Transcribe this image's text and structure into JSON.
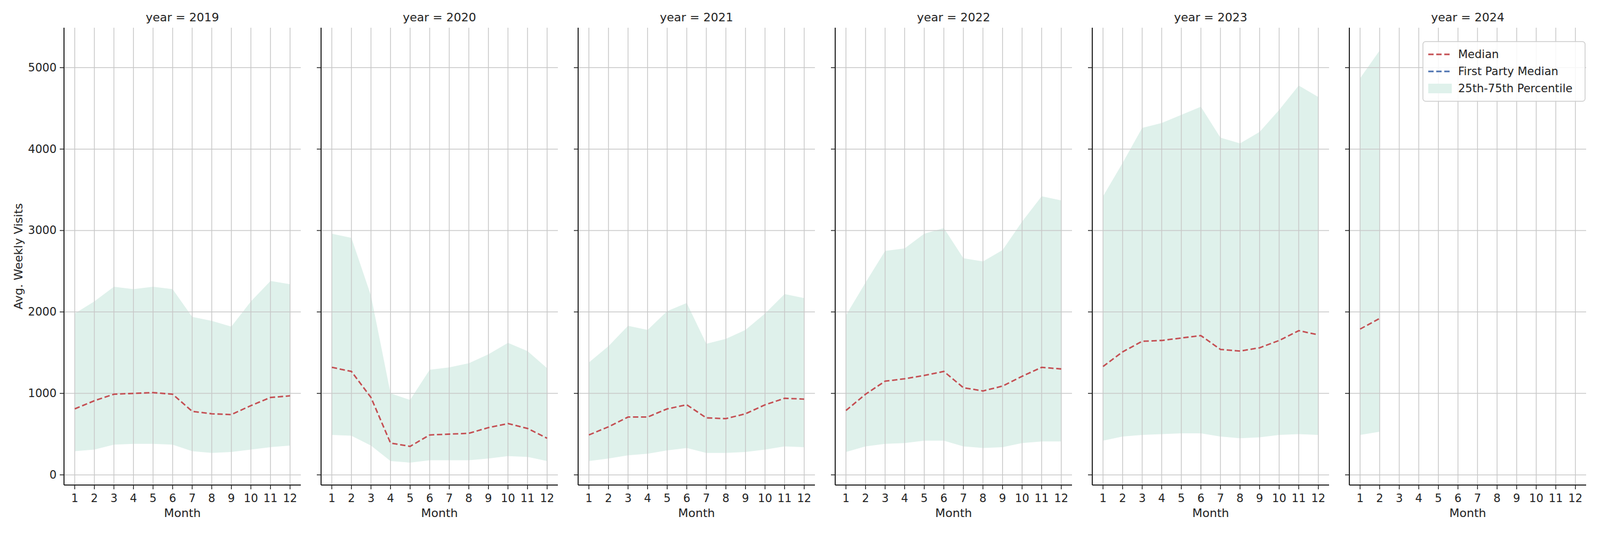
{
  "chart_data": [
    {
      "type": "line",
      "title": "year = 2019",
      "x_label": "Month",
      "y_label": "Avg. Weekly Visits",
      "grid": true,
      "x": [
        1,
        2,
        3,
        4,
        5,
        6,
        7,
        8,
        9,
        10,
        11,
        12
      ],
      "xlim": [
        0.45,
        12.55
      ],
      "xticks": [
        1,
        2,
        3,
        4,
        5,
        6,
        7,
        8,
        9,
        10,
        11,
        12
      ],
      "ylim": [
        -125,
        5490
      ],
      "yticks": [
        0,
        1000,
        2000,
        3000,
        4000,
        5000
      ],
      "series": [
        {
          "name": "Median",
          "color": "#c44e52",
          "line_style": "dashed",
          "values": [
            810,
            910,
            990,
            1000,
            1010,
            990,
            780,
            750,
            740,
            850,
            950,
            970
          ]
        },
        {
          "name": "First Party Median",
          "color": "#4c72b0",
          "line_style": "dashed",
          "values": [
            null,
            null,
            null,
            null,
            null,
            null,
            null,
            null,
            null,
            null,
            null,
            null
          ]
        },
        {
          "name": "25th-75th Percentile",
          "type": "area",
          "color": "#dff1eb",
          "lower": [
            290,
            310,
            370,
            380,
            380,
            370,
            290,
            270,
            280,
            310,
            340,
            360
          ],
          "upper": [
            1980,
            2130,
            2310,
            2280,
            2310,
            2280,
            1940,
            1890,
            1820,
            2130,
            2380,
            2340
          ]
        }
      ]
    },
    {
      "type": "line",
      "title": "year = 2020",
      "x_label": "Month",
      "grid": true,
      "tick_labels": "x",
      "x": [
        1,
        2,
        3,
        4,
        5,
        6,
        7,
        8,
        9,
        10,
        11,
        12
      ],
      "xlim": [
        0.45,
        12.55
      ],
      "xticks": [
        1,
        2,
        3,
        4,
        5,
        6,
        7,
        8,
        9,
        10,
        11,
        12
      ],
      "ylim": [
        -125,
        5490
      ],
      "yticks": [
        0,
        1000,
        2000,
        3000,
        4000,
        5000
      ],
      "series": [
        {
          "name": "Median",
          "color": "#c44e52",
          "line_style": "dashed",
          "values": [
            1320,
            1270,
            950,
            390,
            350,
            490,
            500,
            510,
            580,
            630,
            570,
            450
          ]
        },
        {
          "name": "First Party Median",
          "color": "#4c72b0",
          "line_style": "dashed",
          "values": [
            null,
            null,
            null,
            null,
            null,
            null,
            null,
            null,
            null,
            null,
            null,
            null
          ]
        },
        {
          "name": "25th-75th Percentile",
          "type": "area",
          "color": "#dff1eb",
          "lower": [
            490,
            480,
            360,
            170,
            150,
            180,
            180,
            180,
            200,
            230,
            220,
            170
          ],
          "upper": [
            2960,
            2910,
            2200,
            1000,
            920,
            1290,
            1320,
            1370,
            1480,
            1620,
            1520,
            1310
          ]
        }
      ]
    },
    {
      "type": "line",
      "title": "year = 2021",
      "x_label": "Month",
      "grid": true,
      "tick_labels": "x",
      "x": [
        1,
        2,
        3,
        4,
        5,
        6,
        7,
        8,
        9,
        10,
        11,
        12
      ],
      "xlim": [
        0.45,
        12.55
      ],
      "xticks": [
        1,
        2,
        3,
        4,
        5,
        6,
        7,
        8,
        9,
        10,
        11,
        12
      ],
      "ylim": [
        -125,
        5490
      ],
      "yticks": [
        0,
        1000,
        2000,
        3000,
        4000,
        5000
      ],
      "series": [
        {
          "name": "Median",
          "color": "#c44e52",
          "line_style": "dashed",
          "values": [
            490,
            590,
            710,
            710,
            810,
            860,
            700,
            690,
            750,
            860,
            940,
            930
          ]
        },
        {
          "name": "First Party Median",
          "color": "#4c72b0",
          "line_style": "dashed",
          "values": [
            null,
            null,
            null,
            null,
            null,
            null,
            null,
            null,
            null,
            null,
            null,
            null
          ]
        },
        {
          "name": "25th-75th Percentile",
          "type": "area",
          "color": "#dff1eb",
          "lower": [
            170,
            200,
            240,
            260,
            300,
            330,
            270,
            270,
            280,
            310,
            350,
            340
          ],
          "upper": [
            1380,
            1580,
            1830,
            1780,
            2010,
            2110,
            1610,
            1670,
            1780,
            1980,
            2220,
            2170
          ]
        }
      ]
    },
    {
      "type": "line",
      "title": "year = 2022",
      "x_label": "Month",
      "grid": true,
      "tick_labels": "x",
      "x": [
        1,
        2,
        3,
        4,
        5,
        6,
        7,
        8,
        9,
        10,
        11,
        12
      ],
      "xlim": [
        0.45,
        12.55
      ],
      "xticks": [
        1,
        2,
        3,
        4,
        5,
        6,
        7,
        8,
        9,
        10,
        11,
        12
      ],
      "ylim": [
        -125,
        5490
      ],
      "yticks": [
        0,
        1000,
        2000,
        3000,
        4000,
        5000
      ],
      "series": [
        {
          "name": "Median",
          "color": "#c44e52",
          "line_style": "dashed",
          "values": [
            790,
            990,
            1150,
            1180,
            1220,
            1270,
            1070,
            1030,
            1090,
            1210,
            1320,
            1300
          ]
        },
        {
          "name": "First Party Median",
          "color": "#4c72b0",
          "line_style": "dashed",
          "values": [
            null,
            null,
            null,
            null,
            null,
            null,
            null,
            null,
            null,
            null,
            null,
            null
          ]
        },
        {
          "name": "25th-75th Percentile",
          "type": "area",
          "color": "#dff1eb",
          "lower": [
            280,
            350,
            380,
            390,
            420,
            420,
            350,
            330,
            340,
            390,
            410,
            410
          ],
          "upper": [
            1960,
            2360,
            2750,
            2780,
            2960,
            3030,
            2660,
            2620,
            2760,
            3110,
            3420,
            3370
          ]
        }
      ]
    },
    {
      "type": "line",
      "title": "year = 2023",
      "x_label": "Month",
      "grid": true,
      "tick_labels": "x",
      "x": [
        1,
        2,
        3,
        4,
        5,
        6,
        7,
        8,
        9,
        10,
        11,
        12
      ],
      "xlim": [
        0.45,
        12.55
      ],
      "xticks": [
        1,
        2,
        3,
        4,
        5,
        6,
        7,
        8,
        9,
        10,
        11,
        12
      ],
      "ylim": [
        -125,
        5490
      ],
      "yticks": [
        0,
        1000,
        2000,
        3000,
        4000,
        5000
      ],
      "series": [
        {
          "name": "Median",
          "color": "#c44e52",
          "line_style": "dashed",
          "values": [
            1330,
            1510,
            1640,
            1650,
            1680,
            1710,
            1540,
            1520,
            1560,
            1650,
            1770,
            1720
          ]
        },
        {
          "name": "First Party Median",
          "color": "#4c72b0",
          "line_style": "dashed",
          "values": [
            null,
            null,
            null,
            null,
            null,
            null,
            null,
            null,
            null,
            null,
            null,
            null
          ]
        },
        {
          "name": "25th-75th Percentile",
          "type": "area",
          "color": "#dff1eb",
          "lower": [
            420,
            470,
            490,
            500,
            510,
            510,
            470,
            450,
            460,
            490,
            500,
            490
          ],
          "upper": [
            3420,
            3830,
            4260,
            4320,
            4420,
            4520,
            4140,
            4070,
            4210,
            4480,
            4780,
            4640
          ]
        }
      ]
    },
    {
      "type": "line",
      "title": "year = 2024",
      "x_label": "Month",
      "grid": true,
      "tick_labels": "x",
      "legend": "upper right",
      "x": [
        1,
        2,
        3,
        4,
        5,
        6,
        7,
        8,
        9,
        10,
        11,
        12
      ],
      "xlim": [
        0.45,
        12.55
      ],
      "xticks": [
        1,
        2,
        3,
        4,
        5,
        6,
        7,
        8,
        9,
        10,
        11,
        12
      ],
      "ylim": [
        -125,
        5490
      ],
      "yticks": [
        0,
        1000,
        2000,
        3000,
        4000,
        5000
      ],
      "series": [
        {
          "name": "Median",
          "color": "#c44e52",
          "line_style": "dashed",
          "values": [
            1790,
            1920,
            null,
            null,
            null,
            null,
            null,
            null,
            null,
            null,
            null,
            null
          ]
        },
        {
          "name": "First Party Median",
          "color": "#4c72b0",
          "line_style": "dashed",
          "values": [
            null,
            null,
            null,
            null,
            null,
            null,
            null,
            null,
            null,
            null,
            null,
            null
          ]
        },
        {
          "name": "25th-75th Percentile",
          "type": "area",
          "color": "#dff1eb",
          "lower": [
            490,
            530,
            null,
            null,
            null,
            null,
            null,
            null,
            null,
            null,
            null,
            null
          ],
          "upper": [
            4870,
            5210,
            null,
            null,
            null,
            null,
            null,
            null,
            null,
            null,
            null,
            null
          ]
        }
      ]
    }
  ]
}
